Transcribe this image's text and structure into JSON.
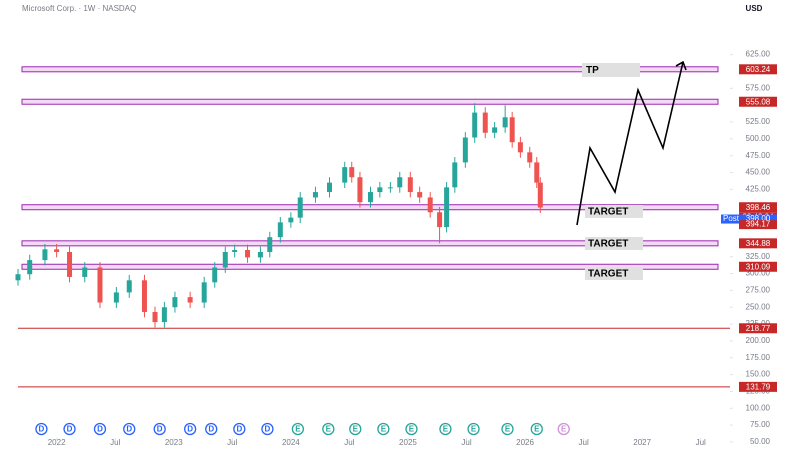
{
  "chart_data": {
    "type": "candlestick",
    "title": "Microsoft Corp. · 1W · NASDAQ",
    "currency": "USD",
    "xlim": [
      2021.67,
      2027.75
    ],
    "ylim": [
      44,
      669
    ],
    "xticks": [
      {
        "value": 2022,
        "label": "2022"
      },
      {
        "value": 2022.5,
        "label": "Jul"
      },
      {
        "value": 2023,
        "label": "2023"
      },
      {
        "value": 2023.5,
        "label": "Jul"
      },
      {
        "value": 2024,
        "label": "2024"
      },
      {
        "value": 2024.5,
        "label": "Jul"
      },
      {
        "value": 2025,
        "label": "2025"
      },
      {
        "value": 2025.5,
        "label": "Jul"
      },
      {
        "value": 2026,
        "label": "2026"
      },
      {
        "value": 2026.5,
        "label": "Jul"
      },
      {
        "value": 2027,
        "label": "2027"
      },
      {
        "value": 2027.5,
        "label": "Jul"
      }
    ],
    "yticks": [
      {
        "value": 625,
        "label": "625.00"
      },
      {
        "value": 575,
        "label": "575.00"
      },
      {
        "value": 525,
        "label": "525.00"
      },
      {
        "value": 500,
        "label": "500.00"
      },
      {
        "value": 475,
        "label": "475.00"
      },
      {
        "value": 450,
        "label": "450.00"
      },
      {
        "value": 425,
        "label": "425.00"
      },
      {
        "value": 325,
        "label": "325.00"
      },
      {
        "value": 300,
        "label": "300.00"
      },
      {
        "value": 275,
        "label": "275.00"
      },
      {
        "value": 250,
        "label": "250.00"
      },
      {
        "value": 225,
        "label": "225.00"
      },
      {
        "value": 200,
        "label": "200.00"
      },
      {
        "value": 175,
        "label": "175.00"
      },
      {
        "value": 150,
        "label": "150.00"
      },
      {
        "value": 125,
        "label": "125.00"
      },
      {
        "value": 100,
        "label": "100.00"
      },
      {
        "value": 75,
        "label": "75.00"
      },
      {
        "value": 50,
        "label": "50.00"
      }
    ],
    "up_color": "#26a69a",
    "down_color": "#ef5350",
    "candles": {
      "x": [
        2021.67,
        2021.77,
        2021.9,
        2022.0,
        2022.11,
        2022.24,
        2022.37,
        2022.51,
        2022.62,
        2022.75,
        2022.84,
        2022.92,
        2023.01,
        2023.14,
        2023.26,
        2023.35,
        2023.44,
        2023.52,
        2023.63,
        2023.74,
        2023.82,
        2023.91,
        2024.0,
        2024.08,
        2024.21,
        2024.33,
        2024.46,
        2024.52,
        2024.59,
        2024.68,
        2024.76,
        2024.85,
        2024.93,
        2025.02,
        2025.1,
        2025.19,
        2025.27,
        2025.33,
        2025.4,
        2025.49,
        2025.57,
        2025.66,
        2025.74,
        2025.83,
        2025.89,
        2025.96,
        2026.04,
        2026.1,
        2026.13
      ],
      "open": [
        290,
        299,
        320,
        336,
        332,
        295,
        309,
        257,
        272,
        290,
        243,
        228,
        250,
        265,
        257,
        287,
        309,
        332,
        335,
        324,
        332,
        354,
        376,
        383,
        413,
        421,
        435,
        458,
        443,
        406,
        421,
        428,
        428,
        443,
        421,
        413,
        391,
        369,
        428,
        465,
        502,
        539,
        509,
        517,
        532,
        495,
        480,
        465,
        435
      ],
      "high": [
        307,
        328,
        344,
        344,
        340,
        317,
        317,
        280,
        298,
        298,
        251,
        258,
        273,
        273,
        295,
        317,
        340,
        343,
        343,
        340,
        362,
        384,
        391,
        421,
        429,
        443,
        466,
        466,
        451,
        429,
        436,
        436,
        451,
        451,
        429,
        421,
        399,
        436,
        473,
        510,
        553,
        547,
        525,
        550,
        540,
        503,
        488,
        473,
        443
      ],
      "low": [
        282,
        291,
        312,
        324,
        287,
        287,
        249,
        249,
        264,
        235,
        220,
        220,
        242,
        249,
        249,
        279,
        301,
        324,
        316,
        316,
        324,
        346,
        368,
        375,
        405,
        413,
        427,
        435,
        398,
        398,
        413,
        420,
        420,
        413,
        405,
        383,
        345,
        361,
        420,
        457,
        494,
        501,
        501,
        509,
        487,
        472,
        457,
        427,
        390
      ],
      "close": [
        299,
        320,
        336,
        332,
        295,
        309,
        257,
        272,
        290,
        243,
        228,
        250,
        265,
        257,
        287,
        309,
        332,
        335,
        324,
        332,
        354,
        376,
        383,
        413,
        421,
        435,
        458,
        443,
        406,
        421,
        428,
        428,
        443,
        421,
        413,
        391,
        369,
        428,
        465,
        502,
        539,
        509,
        517,
        532,
        495,
        480,
        465,
        435,
        398
      ]
    },
    "levels": [
      {
        "value": 603.24,
        "style": "zone"
      },
      {
        "value": 555.08,
        "style": "zone"
      },
      {
        "value": 398.46,
        "style": "zone"
      },
      {
        "value": 344.88,
        "style": "zone"
      },
      {
        "value": 310.09,
        "style": "zone"
      },
      {
        "value": 218.77,
        "style": "line"
      },
      {
        "value": 131.79,
        "style": "line"
      }
    ],
    "countdown": "22:42:34",
    "post_price": {
      "tag": "Post",
      "value": 398,
      "label": "398.00"
    },
    "last_price": 394.17,
    "annotations": [
      "TP",
      "TARGET",
      "TARGET",
      "TARGET"
    ],
    "events": [
      {
        "x": 2021.87,
        "label": "D"
      },
      {
        "x": 2022.11,
        "label": "D"
      },
      {
        "x": 2022.37,
        "label": "D"
      },
      {
        "x": 2022.62,
        "label": "D"
      },
      {
        "x": 2022.88,
        "label": "D"
      },
      {
        "x": 2023.14,
        "label": "D"
      },
      {
        "x": 2023.32,
        "label": "D"
      },
      {
        "x": 2023.56,
        "label": "D"
      },
      {
        "x": 2023.8,
        "label": "D"
      },
      {
        "x": 2024.06,
        "label": "E"
      },
      {
        "x": 2024.32,
        "label": "E"
      },
      {
        "x": 2024.55,
        "label": "E"
      },
      {
        "x": 2024.79,
        "label": "E"
      },
      {
        "x": 2025.03,
        "label": "E"
      },
      {
        "x": 2025.32,
        "label": "E"
      },
      {
        "x": 2025.56,
        "label": "E"
      },
      {
        "x": 2025.85,
        "label": "E"
      },
      {
        "x": 2026.1,
        "label": "E"
      },
      {
        "x": 2026.33,
        "label": "E"
      }
    ]
  }
}
